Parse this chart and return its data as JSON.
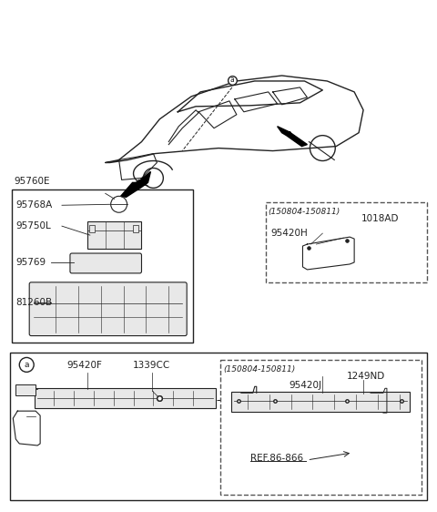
{
  "bg_color": "#ffffff",
  "line_color": "#222222",
  "dashed_box_color": "#555555",
  "font_size_label": 7.5,
  "font_size_small": 6.5,
  "parts": {
    "top_left_box": {
      "label_95760E": "95760E",
      "label_95768A": "95768A",
      "label_95750L": "95750L",
      "label_95769": "95769",
      "label_81260B": "81260B"
    },
    "top_right_dashed_box": {
      "date_range": "(150804-150811)",
      "label_1018AD": "1018AD",
      "label_95420H": "95420H"
    },
    "bottom_solid_box": {
      "circle_label": "a",
      "label_95420F": "95420F",
      "label_1339CC": "1339CC"
    },
    "bottom_dashed_box": {
      "date_range": "(150804-150811)",
      "label_95420J": "95420J",
      "label_1249ND": "1249ND",
      "label_ref": "REF.86-866"
    }
  }
}
